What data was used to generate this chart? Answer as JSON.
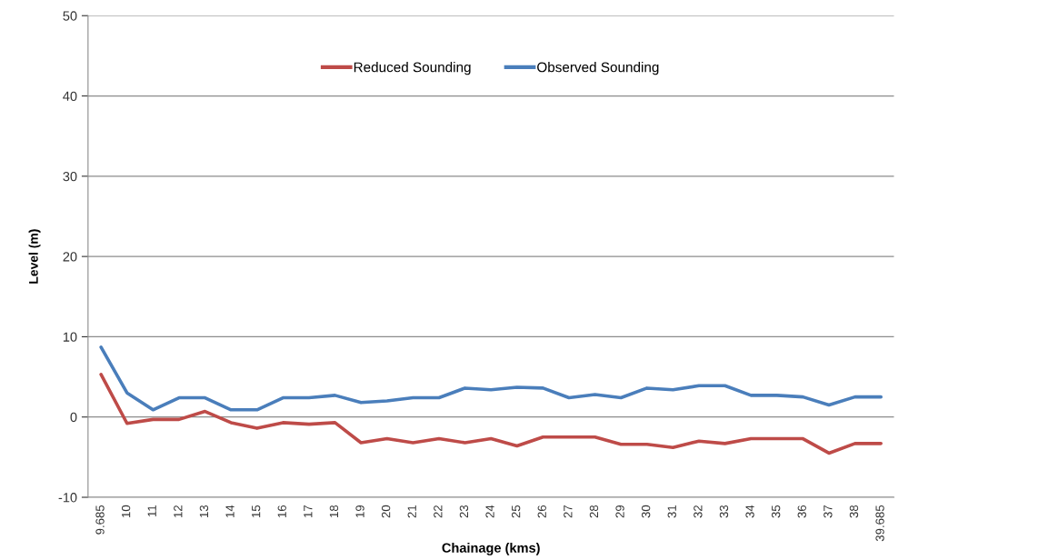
{
  "chart_data": {
    "type": "line",
    "xlabel": "Chainage (kms)",
    "ylabel": "Level (m)",
    "categories": [
      "9.685",
      "10",
      "11",
      "12",
      "13",
      "14",
      "15",
      "16",
      "17",
      "18",
      "19",
      "20",
      "21",
      "22",
      "23",
      "24",
      "25",
      "26",
      "27",
      "28",
      "29",
      "30",
      "31",
      "32",
      "33",
      "34",
      "35",
      "36",
      "37",
      "38",
      "39.685"
    ],
    "series": [
      {
        "name": "Reduced Sounding",
        "color": "#be4b48",
        "values": [
          5.3,
          -0.8,
          -0.3,
          -0.3,
          0.7,
          -0.7,
          -1.4,
          -0.7,
          -0.9,
          -0.7,
          -3.2,
          -2.7,
          -3.2,
          -2.7,
          -3.2,
          -2.7,
          -3.6,
          -2.5,
          -2.5,
          -2.5,
          -3.4,
          -3.4,
          -3.8,
          -3.0,
          -3.3,
          -2.7,
          -2.7,
          -2.7,
          -4.5,
          -3.3,
          -3.3
        ]
      },
      {
        "name": "Observed Sounding",
        "color": "#4a7ebb",
        "values": [
          8.7,
          3.0,
          0.9,
          2.4,
          2.4,
          0.9,
          0.9,
          2.4,
          2.4,
          2.7,
          1.8,
          2.0,
          2.4,
          2.4,
          3.6,
          3.4,
          3.7,
          3.6,
          2.4,
          2.8,
          2.4,
          3.6,
          3.4,
          3.9,
          3.9,
          2.7,
          2.7,
          2.5,
          1.5,
          2.5,
          2.5
        ]
      }
    ],
    "ylim": [
      -10,
      50
    ],
    "yticks": [
      -10,
      0,
      10,
      20,
      30,
      40,
      50
    ],
    "grid": "y",
    "legend": "top",
    "marker": "none",
    "line_style": "solid"
  }
}
